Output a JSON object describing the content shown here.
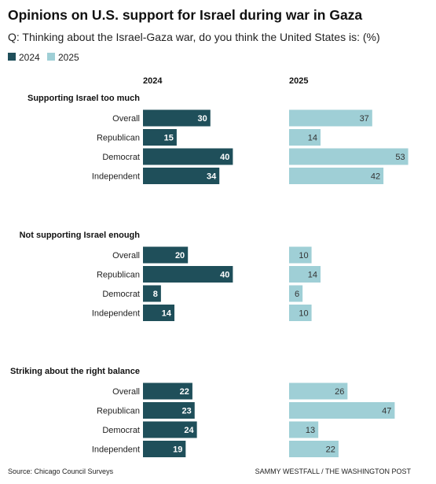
{
  "title": "Opinions on U.S. support for Israel during war in Gaza",
  "subtitle": "Q: Thinking about the Israel-Gaza war, do you think the United States is: (%)",
  "legend": [
    {
      "label": "2024",
      "color": "#1f4f5a"
    },
    {
      "label": "2025",
      "color": "#9fcfd6"
    }
  ],
  "columns": [
    "2024",
    "2025"
  ],
  "source": "Source: Chicago Council Surveys",
  "credit": "SAMMY WESTFALL / THE WASHINGTON POST",
  "chart_data": {
    "type": "bar",
    "orientation": "horizontal",
    "categories": [
      "Overall",
      "Republican",
      "Democrat",
      "Independent"
    ],
    "groups": [
      {
        "title": "Supporting Israel too much",
        "series": [
          {
            "name": "2024",
            "values": [
              30,
              15,
              40,
              34
            ]
          },
          {
            "name": "2025",
            "values": [
              37,
              14,
              53,
              42
            ]
          }
        ]
      },
      {
        "title": "Not supporting Israel enough",
        "series": [
          {
            "name": "2024",
            "values": [
              20,
              40,
              8,
              14
            ]
          },
          {
            "name": "2025",
            "values": [
              10,
              14,
              6,
              10
            ]
          }
        ]
      },
      {
        "title": "Striking about the right balance",
        "series": [
          {
            "name": "2024",
            "values": [
              22,
              23,
              24,
              19
            ]
          },
          {
            "name": "2025",
            "values": [
              26,
              47,
              13,
              22
            ]
          }
        ]
      }
    ],
    "colors": {
      "2024": "#1f4f5a",
      "2025": "#9fcfd6"
    },
    "xlim": [
      0,
      60
    ],
    "grid": false,
    "legend_position": "top-left"
  }
}
